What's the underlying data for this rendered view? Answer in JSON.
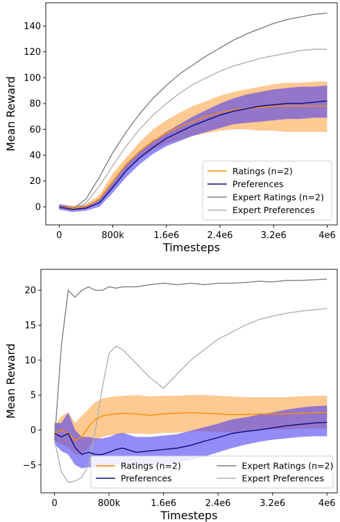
{
  "chart_data": [
    {
      "type": "line",
      "title": "",
      "xlabel": "Timesteps",
      "ylabel": "Mean Reward",
      "x_tick_labels": [
        "0",
        "800k",
        "1.6e6",
        "2.4e6",
        "3.2e6",
        "4e6"
      ],
      "x_tick_values": [
        0,
        800000,
        1600000,
        2400000,
        3200000,
        4000000
      ],
      "y_ticks": [
        0,
        20,
        40,
        60,
        80,
        100,
        120,
        140
      ],
      "xlim": [
        -200000,
        4150000
      ],
      "ylim": [
        -14,
        158
      ],
      "grid": false,
      "legend": {
        "position": "lower-right",
        "columns": 1
      },
      "x": [
        0,
        200000,
        400000,
        600000,
        800000,
        1000000,
        1200000,
        1400000,
        1600000,
        1800000,
        2000000,
        2200000,
        2400000,
        2600000,
        2800000,
        3000000,
        3200000,
        3400000,
        3600000,
        3800000,
        4000000
      ],
      "series": [
        {
          "name": "Ratings (n=2)",
          "color": "#ff8c00",
          "band_color": "#ffa54a",
          "values": [
            0,
            -1,
            0,
            6,
            20,
            33,
            43,
            51,
            57,
            62,
            66,
            70,
            73,
            75,
            76,
            77,
            78,
            78,
            78,
            78,
            78
          ],
          "lower": [
            -2,
            -3,
            -2,
            3,
            15,
            28,
            37,
            44,
            49,
            52,
            55,
            57,
            59,
            60,
            60,
            59,
            59,
            58,
            58,
            58,
            58
          ],
          "upper": [
            2,
            1,
            2,
            9,
            26,
            38,
            50,
            60,
            67,
            73,
            78,
            82,
            86,
            89,
            91,
            93,
            95,
            96,
            96,
            97,
            97
          ]
        },
        {
          "name": "Preferences",
          "color": "#0a0a7a",
          "band_color": "#4b3ff0",
          "values": [
            0,
            -2,
            -1,
            3,
            15,
            28,
            38,
            46,
            53,
            58,
            63,
            67,
            71,
            74,
            76,
            78,
            79,
            80,
            80,
            81,
            82
          ],
          "lower": [
            -2,
            -4,
            -3,
            0,
            11,
            23,
            33,
            41,
            47,
            51,
            55,
            58,
            61,
            64,
            65,
            66,
            67,
            68,
            68,
            69,
            69
          ],
          "upper": [
            2,
            0,
            1,
            6,
            19,
            33,
            43,
            51,
            58,
            64,
            70,
            75,
            80,
            84,
            87,
            89,
            91,
            92,
            93,
            93,
            94
          ]
        },
        {
          "name": "Expert Ratings (n=2)",
          "color": "#7f7f7f",
          "values": [
            0,
            -2,
            6,
            23,
            42,
            58,
            72,
            84,
            94,
            103,
            110,
            117,
            123,
            129,
            134,
            138,
            142,
            145,
            147,
            149,
            150
          ]
        },
        {
          "name": "Expert Preferences",
          "color": "#b0b0b0",
          "values": [
            0,
            -2,
            3,
            16,
            32,
            47,
            60,
            71,
            80,
            88,
            95,
            100,
            105,
            109,
            112,
            115,
            117,
            119,
            121,
            122,
            122
          ]
        }
      ]
    },
    {
      "type": "line",
      "title": "",
      "xlabel": "Timesteps",
      "ylabel": "Mean Reward",
      "x_tick_labels": [
        "0",
        "800k",
        "1.6e6",
        "2.4e6",
        "3.2e6",
        "4e6"
      ],
      "x_tick_values": [
        0,
        800000,
        1600000,
        2400000,
        3200000,
        4000000
      ],
      "y_ticks": [
        -5,
        0,
        5,
        10,
        15,
        20
      ],
      "y_tick_labels": [
        "−5",
        "0",
        "5",
        "10",
        "15",
        "20"
      ],
      "xlim": [
        -200000,
        4150000
      ],
      "ylim": [
        -9,
        23
      ],
      "grid": false,
      "legend": {
        "position": "bottom-center",
        "columns": 2
      },
      "x": [
        0,
        100000,
        200000,
        300000,
        400000,
        500000,
        600000,
        700000,
        800000,
        900000,
        1000000,
        1200000,
        1400000,
        1600000,
        1800000,
        2000000,
        2200000,
        2400000,
        2600000,
        2800000,
        3000000,
        3200000,
        3400000,
        3600000,
        3800000,
        4000000
      ],
      "series": [
        {
          "name": "Ratings (n=2)",
          "color": "#ff8c00",
          "band_color": "#ffa54a",
          "values": [
            -0.5,
            0,
            -0.5,
            -1.5,
            -1,
            0.5,
            1.5,
            2,
            2.2,
            2.3,
            2.4,
            2.3,
            2.1,
            2.3,
            2.4,
            2.5,
            2.4,
            2.3,
            2.2,
            2.2,
            2.3,
            2.3,
            2.3,
            2.4,
            2.5,
            2.5
          ],
          "lower": [
            -1.5,
            -2,
            -2.5,
            -3.5,
            -3.5,
            -2.5,
            -1.5,
            -1,
            -0.8,
            -0.6,
            -0.5,
            -0.5,
            -0.6,
            -0.4,
            -0.4,
            -0.2,
            -0.2,
            -0.3,
            -0.3,
            -0.1,
            0,
            0.1,
            0.1,
            0.2,
            0.2,
            0.2
          ],
          "upper": [
            0.5,
            2,
            2.5,
            1,
            2,
            3,
            4,
            4.5,
            4.7,
            4.8,
            4.9,
            5,
            4.8,
            4.9,
            4.9,
            5,
            5,
            4.9,
            4.8,
            4.7,
            4.7,
            4.7,
            4.7,
            4.8,
            4.9,
            4.9
          ]
        },
        {
          "name": "Preferences",
          "color": "#0a0a7a",
          "band_color": "#4b3ff0",
          "values": [
            -0.5,
            -1,
            -0.5,
            -2.5,
            -3.5,
            -3.2,
            -3.5,
            -3.5,
            -3.2,
            -2.8,
            -2.6,
            -3.2,
            -3,
            -2.8,
            -2.6,
            -2.2,
            -1.6,
            -1.1,
            -0.5,
            -0.2,
            0,
            0.3,
            0.6,
            0.8,
            1,
            1.1
          ],
          "lower": [
            -2,
            -3,
            -3.5,
            -5,
            -5.5,
            -5.3,
            -5.5,
            -5.5,
            -5.4,
            -5,
            -4.8,
            -5.2,
            -5,
            -4.9,
            -4.7,
            -4.3,
            -3.8,
            -3.2,
            -2.6,
            -2.1,
            -1.7,
            -1.4,
            -1.2,
            -1,
            -0.9,
            -0.9
          ],
          "upper": [
            1,
            1,
            2.5,
            0,
            -1,
            -1,
            -1.2,
            -1.2,
            -1,
            -0.6,
            -0.4,
            -1,
            -1,
            -0.8,
            -0.6,
            -0.1,
            0.4,
            0.9,
            1.5,
            1.8,
            2.2,
            2.5,
            2.9,
            3.2,
            3.4,
            3.5
          ]
        },
        {
          "name": "Expert Ratings (n=2)",
          "color": "#7f7f7f",
          "values": [
            -1.5,
            12,
            20,
            19,
            20,
            20.5,
            20,
            20,
            20.5,
            20.3,
            20.5,
            20.5,
            20.8,
            21,
            20.8,
            21,
            20.8,
            21,
            21,
            21.1,
            21.3,
            21.2,
            21.4,
            21.4,
            21.5,
            21.6
          ]
        },
        {
          "name": "Expert Preferences",
          "color": "#b0b0b0",
          "values": [
            -1.5,
            -6,
            -7.5,
            -7.3,
            -6.8,
            -5,
            0,
            6,
            11,
            12,
            11.5,
            9.5,
            7.5,
            6,
            8,
            10,
            11.5,
            13,
            14,
            15,
            15.8,
            16.3,
            16.7,
            17,
            17.2,
            17.4
          ]
        }
      ]
    }
  ]
}
